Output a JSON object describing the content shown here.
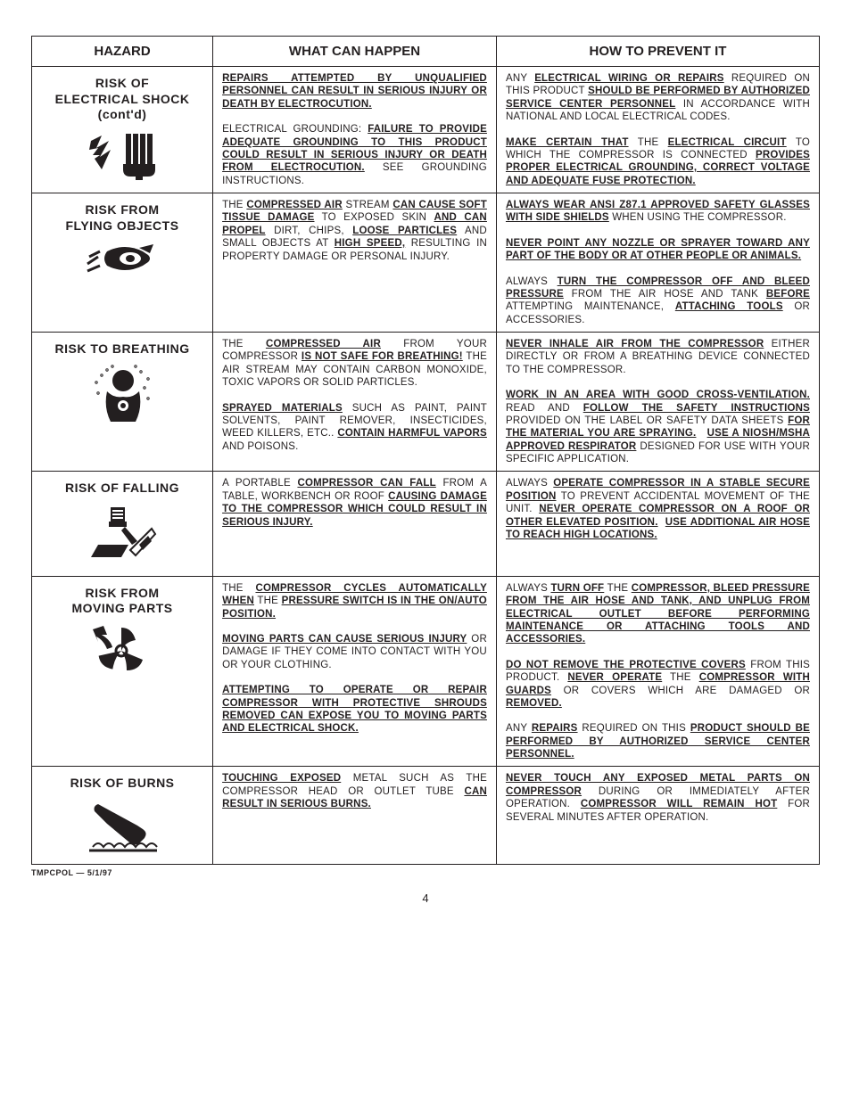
{
  "headers": {
    "h1": "HAZARD",
    "h2": "WHAT CAN HAPPEN",
    "h3": "HOW TO PREVENT IT"
  },
  "rows": [
    {
      "title": "RISK OF<br>ELECTRICAL SHOCK<br>(cont'd)",
      "icon": "shock",
      "what": "<span class='ub'>REPAIRS ATTEMPTED BY UNQUALIFIED PERSONNEL CAN RESULT IN SERIOUS INJURY OR DEATH BY ELECTROCUTION.</span><div class='para-gap'></div>ELECTRICAL GROUNDING: <span class='ub'>FAILURE TO PROVIDE ADEQUATE GROUNDING TO THIS PRODUCT COULD RESULT IN SERIOUS INJURY OR DEATH FROM ELECTROCUTION.</span> SEE GROUNDING INSTRUCTIONS.",
      "how": "ANY <span class='ub'>ELECTRICAL WIRING OR REPAIRS</span> REQUIRED ON THIS PRODUCT <span class='ub'>SHOULD BE PERFORMED BY AUTHORIZED SERVICE CENTER PERSONNEL</span> IN ACCORDANCE WITH NATIONAL AND LOCAL ELECTRICAL CODES.<div class='para-gap'></div><span class='ub'>MAKE CERTAIN THAT</span> THE <span class='ub'>ELECTRICAL CIRCUIT</span> TO WHICH THE COMPRESSOR IS CONNECTED <span class='ub'>PROVIDES PROPER ELECTRICAL GROUNDING, CORRECT VOLTAGE AND ADEQUATE FUSE PROTECTION.</span>"
    },
    {
      "title": "RISK FROM<br>FLYING OBJECTS",
      "icon": "flying",
      "what": "THE <span class='ub'>COMPRESSED AIR</span> STREAM <span class='ub'>CAN CAUSE SOFT TISSUE DAMAGE</span> TO EXPOSED SKIN <span class='ub'>AND CAN PROPEL</span> DIRT, CHIPS, <span class='ub'>LOOSE PARTICLES</span> AND SMALL OBJECTS AT <span class='ub'>HIGH SPEED,</span> RESULTING IN PROPERTY DAMAGE OR PERSONAL INJURY.",
      "how": "<span class='ub'>ALWAYS WEAR ANSI Z87.1 APPROVED SAFETY GLASSES WITH SIDE SHIELDS</span> WHEN USING THE COMPRESSOR.<div class='para-gap'></div><span class='ub'>NEVER POINT ANY NOZZLE OR SPRAYER TOWARD ANY PART OF THE BODY OR AT OTHER PEOPLE OR ANIMALS.</span><div class='para-gap'></div>ALWAYS <span class='ub'>TURN THE COMPRESSOR OFF AND BLEED PRESSURE</span> FROM THE AIR HOSE AND TANK <span class='ub'>BEFORE</span> ATTEMPTING MAINTENANCE, <span class='ub'>ATTACHING TOOLS</span> OR ACCESSORIES."
    },
    {
      "title": "RISK TO BREATHING",
      "icon": "breathing",
      "what": "THE <span class='ub'>COMPRESSED AIR</span> FROM YOUR COMPRESSOR <span class='ub'>IS NOT SAFE FOR BREATHING!</span> THE AIR STREAM MAY CONTAIN CARBON MONOXIDE, TOXIC VAPORS OR SOLID PARTICLES.<div class='para-gap'></div><span class='ub'>SPRAYED MATERIALS</span> SUCH AS PAINT, PAINT SOLVENTS, PAINT REMOVER, INSECTICIDES, WEED KILLERS, ETC.. <span class='ub'>CONTAIN HARMFUL VAPORS</span> AND POISONS.",
      "how": "<span class='ub'>NEVER INHALE AIR FROM THE COMPRESSOR</span> EITHER DIRECTLY OR FROM A BREATHING DEVICE CONNECTED TO THE COMPRESSOR.<div class='para-gap'></div><span class='ub'>WORK IN AN AREA WITH GOOD CROSS-VENTILATION.</span> READ AND <span class='ub'>FOLLOW THE SAFETY INSTRUCTIONS</span> PROVIDED ON THE LABEL OR SAFETY DATA SHEETS <span class='ub'>FOR THE MATERIAL YOU ARE SPRAYING.</span> &nbsp;&nbsp;<span class='ub'>USE A NIOSH/MSHA APPROVED RESPIRATOR</span> DESIGNED FOR USE WITH YOUR SPECIFIC APPLICATION."
    },
    {
      "title": "RISK OF FALLING",
      "icon": "falling",
      "what": "A PORTABLE <span class='ub'>COMPRESSOR CAN FALL</span> FROM A TABLE, WORKBENCH OR ROOF <span class='ub'>CAUSING DAMAGE TO THE COMPRESSOR WHICH COULD RESULT IN SERIOUS INJURY.</span>",
      "how": "ALWAYS <span class='ub'>OPERATE COMPRESSOR IN A STABLE SECURE POSITION</span> TO PREVENT ACCIDENTAL MOVEMENT OF THE UNIT. <span class='ub'>NEVER OPERATE COMPRESSOR ON A ROOF OR OTHER ELEVATED POSITION.</span> &nbsp;<span class='ub'>USE ADDITIONAL AIR HOSE TO REACH HIGH LOCATIONS.</span>"
    },
    {
      "title": "RISK FROM<br>MOVING PARTS",
      "icon": "moving",
      "what": "THE <span class='ub'>COMPRESSOR CYCLES AUTOMATICALLY WHEN</span> THE <span class='ub'>PRESSURE SWITCH IS IN THE ON/AUTO POSITION.</span><div class='para-gap'></div><div class='para-gap'></div><span class='ub'>MOVING PARTS CAN CAUSE SERIOUS INJURY</span> OR DAMAGE IF THEY COME INTO CONTACT WITH YOU OR YOUR CLOTHING.<div class='para-gap'></div><span class='ub'>ATTEMPTING TO OPERATE OR REPAIR COMPRESSOR WITH PROTECTIVE SHROUDS REMOVED CAN EXPOSE YOU TO MOVING PARTS AND ELECTRICAL SHOCK.</span>",
      "how": "ALWAYS <span class='ub'>TURN OFF</span> THE <span class='ub'>COMPRESSOR, BLEED PRESSURE FROM THE AIR HOSE AND TANK, AND UNPLUG FROM ELECTRICAL OUTLET BEFORE PERFORMING MAINTENANCE OR ATTACHING TOOLS AND ACCESSORIES.</span><div class='para-gap'></div><span class='ub'>DO NOT REMOVE THE PROTECTIVE COVERS</span> FROM THIS PRODUCT. <span class='ub'>NEVER OPERATE</span> THE <span class='ub'>COMPRESSOR WITH GUARDS</span> OR COVERS WHICH ARE DAMAGED OR <span class='ub'>REMOVED.</span><div class='para-gap'></div>ANY <span class='ub'>REPAIRS</span> REQUIRED ON THIS <span class='ub'>PRODUCT SHOULD BE PERFORMED BY AUTHORIZED SERVICE CENTER PERSONNEL.</span>"
    },
    {
      "title": "RISK OF BURNS",
      "icon": "burns",
      "what": "<span class='ub'>TOUCHING EXPOSED</span> METAL SUCH AS THE COMPRESSOR HEAD OR OUTLET TUBE <span class='ub'>CAN RESULT IN SERIOUS BURNS.</span>",
      "how": "<span class='ub'>NEVER TOUCH ANY EXPOSED METAL PARTS ON COMPRESSOR</span> DURING OR IMMEDIATELY AFTER OPERATION. <span class='ub'>COMPRESSOR WILL REMAIN HOT</span> FOR SEVERAL MINUTES AFTER OPERATION."
    }
  ],
  "footer": "TMPCPOL — 5/1/97",
  "pageNum": "4",
  "icons": {
    "shock": "<svg width='82' height='58' viewBox='0 0 82 58'><g fill='#231f20'><path d='M6 14 L18 8 L12 22 L26 14 L16 32 L28 24 L18 46 L10 34 L16 30 L8 30 L14 22 L4 24 Z'/><path d='M48 6 L48 40 M56 6 L56 40 M64 6 L64 40 M72 6 L72 40' stroke='#231f20' stroke-width='6'/><path d='M42 40 L78 40 L78 46 Q78 54 70 54 L50 54 Q42 54 42 46 Z'/><rect x='56' y='52' width='8' height='6'/></g></svg>",
    "flying": "<svg width='82' height='48' viewBox='0 0 82 48'><g fill='#231f20'><path d='M2 28 L14 20 M4 20 L16 14 M2 36 L16 30' stroke='#231f20' stroke-width='3' fill='none'/><path d='M24 14 Q44 4 64 14 L70 18 Q74 22 70 26 L64 30 Q44 40 24 30 Q18 22 24 14 Z' fill='#231f20'/><ellipse cx='50' cy='22' rx='12' ry='7' fill='#fff'/><ellipse cx='50' cy='22' rx='5' ry='4' fill='#231f20'/><path d='M60 10 L76 6 L72 16 Z'/></g></svg>",
    "breathing": "<svg width='82' height='72' viewBox='0 0 82 72'><g fill='#231f20'><circle cx='42' cy='20' r='12'/><path d='M24 32 Q20 50 28 66 L56 66 Q64 50 60 32 Q52 40 42 38 Q32 40 24 32 Z'/><g fill='none' stroke='#231f20' stroke-width='1'><circle cx='18' cy='14' r='1.2'/><circle cx='24' cy='8' r='1.2'/><circle cx='12' cy='22' r='1.2'/><circle cx='30' cy='4' r='1.2'/><circle cx='62' cy='10' r='1.2'/><circle cx='70' cy='18' r='1.2'/><circle cx='66' cy='28' r='1.2'/><circle cx='56' cy='4' r='1.2'/><circle cx='14' cy='34' r='1.2'/><circle cx='70' cy='40' r='1.2'/></g><circle cx='42' cy='48' r='6' fill='#fff'/><circle cx='42' cy='48' r='3' fill='#231f20'/></g></svg>",
    "falling": "<svg width='82' height='72' viewBox='0 0 82 72'><g fill='#231f20'><path d='M28 6 L44 6 L44 22 L28 22 Z'/><path d='M26 22 L46 22 L46 28 L26 28 Z'/><path d='M30 10 L42 10 M30 14 L42 14 M30 18 L42 18' stroke='#fff' stroke-width='2'/><path d='M6 62 L40 62 L48 48 L14 48 Z'/><path d='M44 28 L58 44 L52 48 L40 32 Z'/><path d='M50 54 L74 30 L78 36 L56 60 Z' fill='#fff' stroke='#231f20' stroke-width='2'/><path d='M60 48 L70 38 L74 44 L64 54 Z'/></g></svg>",
    "moving": "<svg width='82' height='64' viewBox='0 0 82 64'><g fill='#231f20'><path d='M40 32 m-6 0 a6 6 0 1 0 12 0 a6 6 0 1 0 -12 0' fill='#fff' stroke='#231f20' stroke-width='3'/><path d='M40 32 L40 6 Q52 6 56 20 Q44 22 40 32 Z'/><path d='M40 32 L64 42 Q60 54 46 54 Q46 40 40 32 Z'/><path d='M40 32 L16 42 Q20 54 34 54 Q34 40 40 32 Z' transform='rotate(10 40 32)'/><path d='M8 8 L20 4 L24 14 L18 14 Q28 20 30 28 L24 30 Q20 20 12 16 L14 22 Z'/></g></svg>",
    "burns": "<svg width='82' height='64' viewBox='0 0 82 64'><g fill='#231f20'><path d='M14 8 L36 20 L58 32 L64 36 Q70 40 66 46 L60 52 Q54 56 48 50 L24 30 L10 16 Q8 10 14 8 Z'/><path d='M8 56 Q14 48 20 56 Q26 48 32 56 Q38 48 44 56 Q50 48 56 56 Q62 48 68 56 Q74 48 80 56' fill='none' stroke='#231f20' stroke-width='2'/><line x1='4' y1='60' x2='80' y2='60' stroke='#231f20' stroke-width='3'/></g></svg>"
  }
}
